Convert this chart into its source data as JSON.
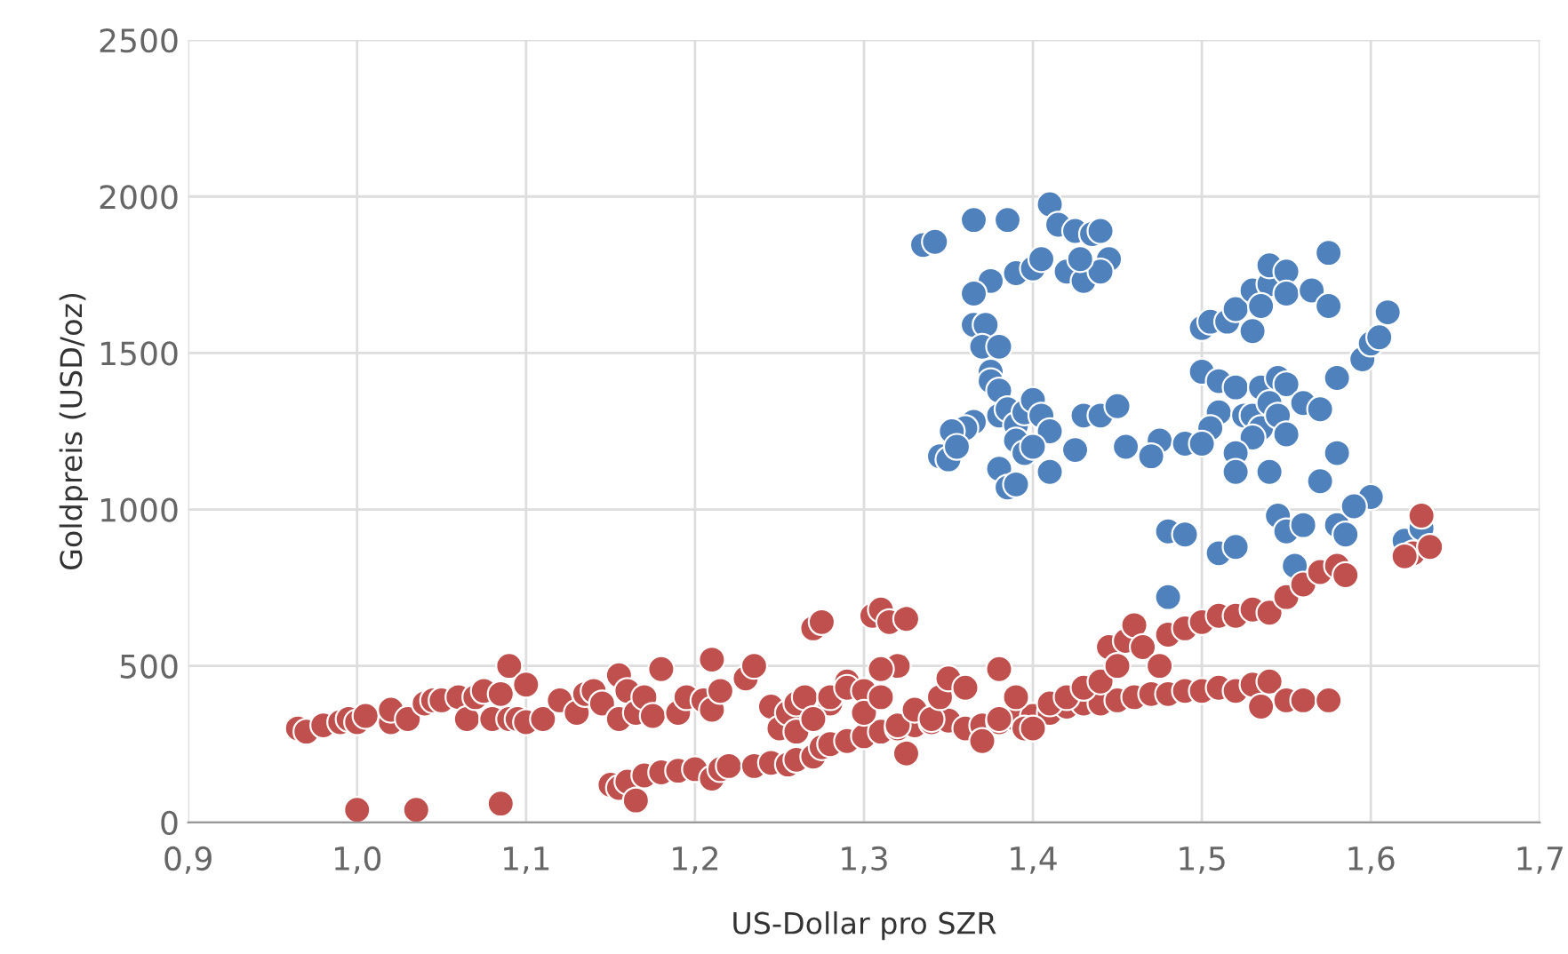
{
  "chart_data": {
    "type": "scatter",
    "xlabel": "US-Dollar pro SZR",
    "ylabel": "Goldpreis (USD/oz)",
    "xlim": [
      0.9,
      1.7
    ],
    "xticks": [
      {
        "value": 0.9,
        "label": "0,9"
      },
      {
        "value": 1.0,
        "label": "1,0"
      },
      {
        "value": 1.1,
        "label": "1,1"
      },
      {
        "value": 1.2,
        "label": "1,2"
      },
      {
        "value": 1.3,
        "label": "1,3"
      },
      {
        "value": 1.4,
        "label": "1,4"
      },
      {
        "value": 1.5,
        "label": "1,5"
      },
      {
        "value": 1.6,
        "label": "1,6"
      },
      {
        "value": 1.7,
        "label": "1,7"
      }
    ],
    "ylim": [
      0,
      2500
    ],
    "yticks": [
      0,
      500,
      1000,
      1500,
      2000,
      2500
    ],
    "grid": true,
    "marker": "circle",
    "series": [
      {
        "color": "#4f81bd",
        "x": [
          1.335,
          1.342,
          1.365,
          1.385,
          1.375,
          1.39,
          1.4,
          1.405,
          1.41,
          1.415,
          1.425,
          1.42,
          1.43,
          1.435,
          1.44,
          1.445,
          1.44,
          1.428,
          1.365,
          1.365,
          1.372,
          1.37,
          1.38,
          1.375,
          1.375,
          1.38,
          1.365,
          1.36,
          1.352,
          1.345,
          1.35,
          1.355,
          1.38,
          1.385,
          1.39,
          1.395,
          1.4,
          1.405,
          1.41,
          1.39,
          1.395,
          1.4,
          1.38,
          1.385,
          1.39,
          1.41,
          1.425,
          1.43,
          1.44,
          1.45,
          1.455,
          1.475,
          1.49,
          1.47,
          1.5,
          1.51,
          1.505,
          1.5,
          1.5,
          1.505,
          1.515,
          1.52,
          1.53,
          1.54,
          1.54,
          1.55,
          1.535,
          1.55,
          1.565,
          1.575,
          1.575,
          1.53,
          1.51,
          1.52,
          1.525,
          1.53,
          1.535,
          1.545,
          1.55,
          1.54,
          1.535,
          1.545,
          1.55,
          1.53,
          1.52,
          1.52,
          1.54,
          1.56,
          1.57,
          1.58,
          1.57,
          1.58,
          1.595,
          1.6,
          1.605,
          1.61,
          1.48,
          1.49,
          1.51,
          1.52,
          1.48,
          1.545,
          1.55,
          1.56,
          1.555,
          1.58,
          1.585,
          1.6,
          1.59,
          1.62,
          1.63
        ],
        "values": [
          1845,
          1855,
          1925,
          1925,
          1730,
          1755,
          1770,
          1800,
          1975,
          1910,
          1890,
          1760,
          1730,
          1880,
          1890,
          1800,
          1760,
          1800,
          1690,
          1590,
          1590,
          1520,
          1520,
          1440,
          1410,
          1380,
          1280,
          1260,
          1250,
          1170,
          1160,
          1200,
          1300,
          1320,
          1270,
          1310,
          1350,
          1300,
          1250,
          1220,
          1180,
          1200,
          1130,
          1070,
          1080,
          1120,
          1190,
          1300,
          1300,
          1330,
          1200,
          1220,
          1210,
          1170,
          1440,
          1310,
          1260,
          1210,
          1580,
          1600,
          1600,
          1640,
          1700,
          1720,
          1780,
          1760,
          1650,
          1690,
          1700,
          1650,
          1820,
          1570,
          1410,
          1390,
          1300,
          1300,
          1390,
          1420,
          1400,
          1340,
          1260,
          1300,
          1240,
          1230,
          1180,
          1120,
          1120,
          1340,
          1320,
          1180,
          1090,
          1420,
          1480,
          1530,
          1550,
          1630,
          930,
          920,
          860,
          880,
          720,
          980,
          930,
          950,
          820,
          950,
          920,
          1040,
          1010,
          900,
          940
        ]
      },
      {
        "color": "#c0504d",
        "x": [
          0.965,
          0.97,
          0.98,
          0.99,
          0.995,
          1.0,
          1.005,
          1.02,
          1.02,
          1.03,
          1.04,
          1.045,
          1.05,
          1.06,
          1.065,
          1.07,
          1.075,
          1.08,
          1.085,
          1.09,
          1.09,
          1.095,
          1.1,
          1.1,
          1.11,
          1.12,
          1.13,
          1.135,
          1.14,
          1.145,
          1.155,
          1.155,
          1.16,
          1.165,
          1.17,
          1.175,
          1.18,
          1.19,
          1.195,
          1.205,
          1.21,
          1.21,
          1.215,
          1.23,
          1.235,
          1.245,
          1.25,
          1.255,
          1.26,
          1.265,
          1.27,
          1.275,
          1.28,
          1.29,
          1.0,
          1.035,
          1.085,
          1.15,
          1.155,
          1.16,
          1.165,
          1.17,
          1.18,
          1.19,
          1.2,
          1.21,
          1.215,
          1.22,
          1.235,
          1.245,
          1.255,
          1.26,
          1.27,
          1.275,
          1.28,
          1.29,
          1.3,
          1.31,
          1.32,
          1.33,
          1.34,
          1.35,
          1.36,
          1.37,
          1.38,
          1.39,
          1.4,
          1.41,
          1.42,
          1.43,
          1.44,
          1.45,
          1.46,
          1.47,
          1.48,
          1.49,
          1.5,
          1.51,
          1.52,
          1.53,
          1.54,
          1.55,
          1.56,
          1.575,
          1.535,
          1.26,
          1.27,
          1.28,
          1.29,
          1.3,
          1.3,
          1.305,
          1.31,
          1.315,
          1.325,
          1.32,
          1.31,
          1.31,
          1.32,
          1.325,
          1.33,
          1.34,
          1.345,
          1.35,
          1.36,
          1.37,
          1.38,
          1.38,
          1.39,
          1.395,
          1.4,
          1.41,
          1.42,
          1.43,
          1.44,
          1.445,
          1.45,
          1.455,
          1.46,
          1.465,
          1.475,
          1.48,
          1.49,
          1.5,
          1.51,
          1.52,
          1.53,
          1.54,
          1.55,
          1.56,
          1.57,
          1.58,
          1.585,
          1.625,
          1.63,
          1.635,
          1.62
        ],
        "values": [
          300,
          290,
          310,
          320,
          330,
          320,
          340,
          320,
          360,
          330,
          380,
          390,
          390,
          400,
          330,
          400,
          420,
          330,
          410,
          330,
          500,
          330,
          440,
          320,
          330,
          390,
          350,
          410,
          420,
          380,
          330,
          470,
          420,
          350,
          400,
          340,
          490,
          350,
          400,
          390,
          360,
          520,
          420,
          460,
          500,
          370,
          300,
          350,
          380,
          400,
          620,
          640,
          380,
          450,
          40,
          40,
          60,
          120,
          110,
          130,
          70,
          150,
          160,
          165,
          170,
          140,
          170,
          180,
          180,
          190,
          185,
          200,
          210,
          240,
          250,
          260,
          275,
          290,
          300,
          310,
          320,
          325,
          300,
          310,
          320,
          330,
          340,
          350,
          370,
          380,
          380,
          390,
          400,
          410,
          410,
          420,
          420,
          430,
          420,
          440,
          450,
          390,
          390,
          390,
          370,
          290,
          330,
          400,
          430,
          420,
          350,
          660,
          680,
          640,
          650,
          500,
          490,
          400,
          310,
          220,
          360,
          330,
          400,
          460,
          430,
          260,
          330,
          490,
          400,
          300,
          300,
          380,
          400,
          430,
          450,
          560,
          500,
          580,
          630,
          560,
          500,
          600,
          620,
          640,
          660,
          660,
          680,
          670,
          720,
          760,
          800,
          820,
          790,
          860,
          980,
          880,
          850
        ]
      }
    ]
  }
}
